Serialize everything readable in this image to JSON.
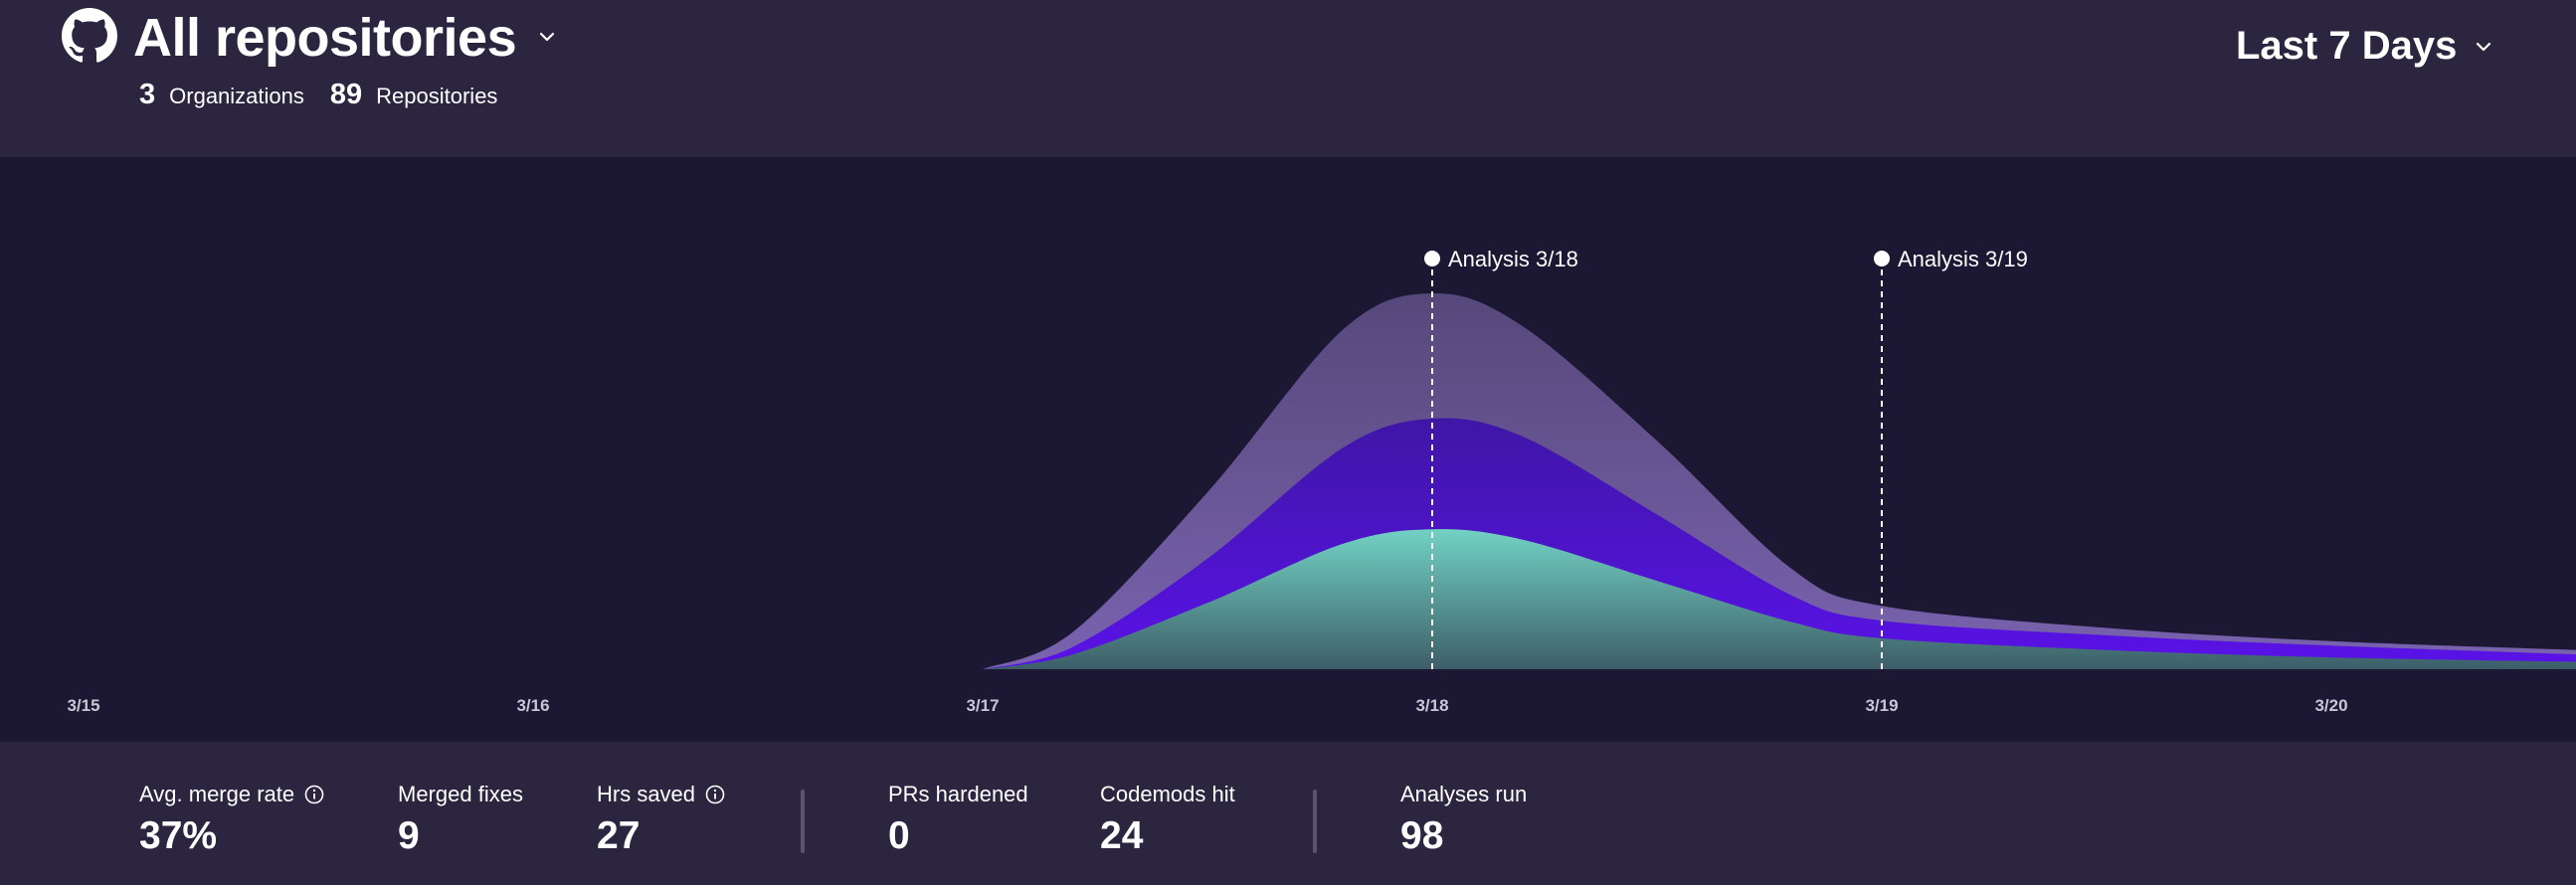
{
  "header": {
    "title": "All repositories",
    "organizations_count": "3",
    "organizations_label": "Organizations",
    "repositories_count": "89",
    "repositories_label": "Repositories",
    "time_range": "Last 7 Days"
  },
  "colors": {
    "background": "#1c1733",
    "panel": "#2b2540",
    "series_top": "#6e5a9f",
    "series_middle": "#4a12c9",
    "series_bottom": "#6ec9bc"
  },
  "chart_data": {
    "type": "area",
    "stacked": true,
    "x": [
      "3/15",
      "3/16",
      "3/17",
      "3/18",
      "3/19",
      "3/20"
    ],
    "annotations": [
      {
        "label": "Analysis 3/18",
        "x": "3/18"
      },
      {
        "label": "Analysis 3/19",
        "x": "3/19"
      }
    ],
    "series": [
      {
        "key": "bottom",
        "color": "#6ec9bc",
        "points": [
          [
            2.0,
            0
          ],
          [
            2.2,
            1.0
          ],
          [
            2.5,
            4.5
          ],
          [
            2.8,
            8.5
          ],
          [
            3.0,
            9.5
          ],
          [
            3.2,
            8.8
          ],
          [
            3.5,
            6.0
          ],
          [
            3.8,
            3.2
          ],
          [
            4.0,
            2.1
          ],
          [
            4.5,
            1.3
          ],
          [
            5.0,
            0.8
          ],
          [
            5.55,
            0.5
          ]
        ]
      },
      {
        "key": "middle",
        "color": "#4a12c9",
        "points": [
          [
            2.0,
            0
          ],
          [
            2.2,
            1.5
          ],
          [
            2.5,
            7.5
          ],
          [
            2.8,
            15.0
          ],
          [
            3.0,
            17.0
          ],
          [
            3.2,
            15.8
          ],
          [
            3.5,
            10.5
          ],
          [
            3.8,
            5.0
          ],
          [
            4.0,
            3.3
          ],
          [
            4.5,
            2.3
          ],
          [
            5.0,
            1.6
          ],
          [
            5.55,
            1.0
          ]
        ]
      },
      {
        "key": "top",
        "color": "#6e5a9f",
        "points": [
          [
            2.0,
            0
          ],
          [
            2.2,
            2.5
          ],
          [
            2.5,
            12.0
          ],
          [
            2.8,
            23.0
          ],
          [
            3.0,
            25.5
          ],
          [
            3.2,
            23.3
          ],
          [
            3.5,
            15.5
          ],
          [
            3.8,
            6.8
          ],
          [
            4.0,
            4.3
          ],
          [
            4.5,
            2.8
          ],
          [
            5.0,
            1.9
          ],
          [
            5.55,
            1.3
          ]
        ]
      }
    ],
    "ylim": [
      0,
      28
    ]
  },
  "metrics": [
    {
      "label": "Avg. merge rate",
      "value": "37%",
      "info": true
    },
    {
      "label": "Merged fixes",
      "value": "9",
      "info": false
    },
    {
      "label": "Hrs saved",
      "value": "27",
      "info": true
    },
    {
      "label": "PRs hardened",
      "value": "0",
      "info": false
    },
    {
      "label": "Codemods hit",
      "value": "24",
      "info": false
    },
    {
      "label": "Analyses run",
      "value": "98",
      "info": false
    }
  ],
  "icons": {
    "repo_source": "github-icon",
    "dropdown": "chevron-down-icon",
    "info": "info-icon"
  }
}
